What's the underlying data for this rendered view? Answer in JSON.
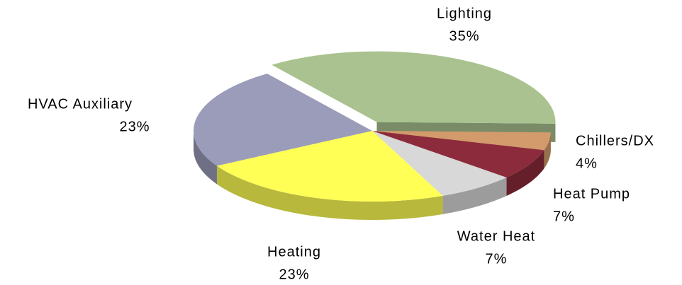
{
  "chart_data": {
    "type": "pie",
    "categories": [
      "Lighting",
      "Chillers/DX",
      "Heat Pump",
      "Water Heat",
      "Heating",
      "HVAC Auxiliary"
    ],
    "values": [
      35,
      4,
      7,
      7,
      23,
      23
    ],
    "value_labels": [
      "35%",
      "4%",
      "7%",
      "7%",
      "23%",
      "23%"
    ],
    "colors": [
      "#a9c28f",
      "#d39b6b",
      "#8c2b3b",
      "#d8d8d8",
      "#ffff55",
      "#9a9cb9"
    ]
  }
}
